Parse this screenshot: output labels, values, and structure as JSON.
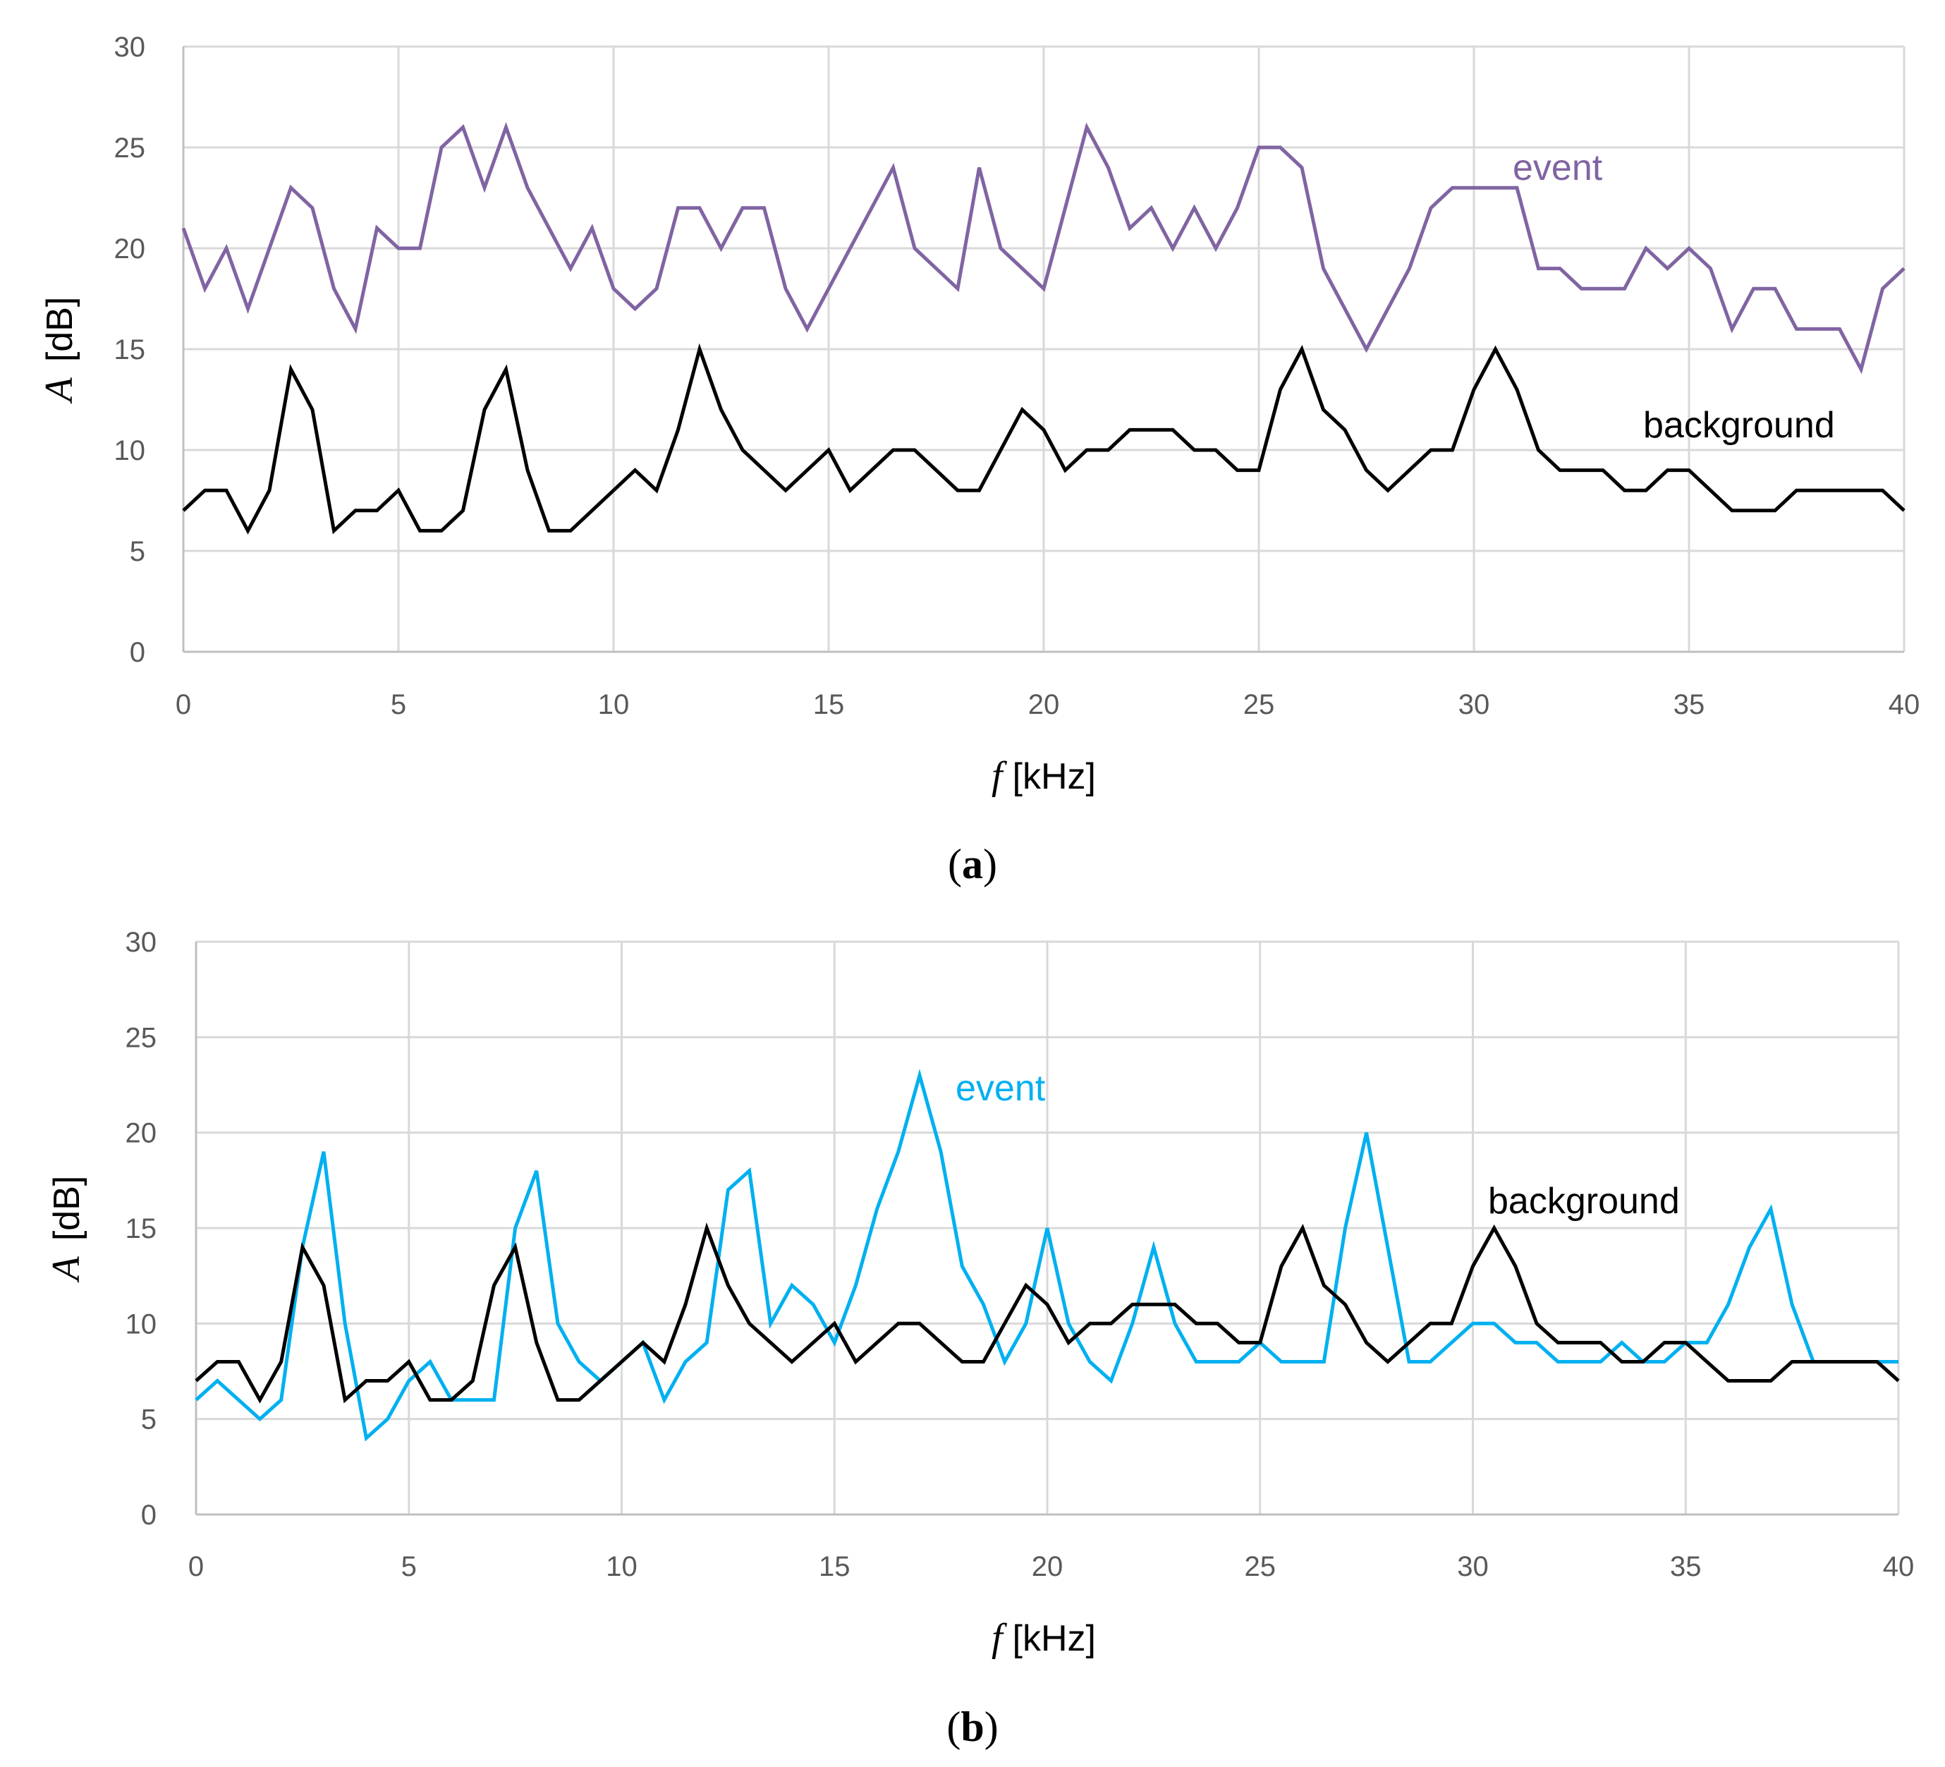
{
  "chart_data": [
    {
      "type": "line",
      "panel_label": "a",
      "xlabel_var": "f",
      "xlabel_unit": "[kHz]",
      "ylabel_var": "A",
      "ylabel_unit": "[dB]",
      "xlim": [
        0,
        40
      ],
      "ylim": [
        0,
        30
      ],
      "xticks": [
        0,
        5,
        10,
        15,
        20,
        25,
        30,
        35,
        40
      ],
      "yticks": [
        0,
        5,
        10,
        15,
        20,
        25,
        30
      ],
      "grid": true,
      "x": [
        0,
        0.5,
        1,
        1.5,
        2,
        2.5,
        3,
        3.5,
        4,
        4.5,
        5,
        5.5,
        6,
        6.5,
        7,
        7.5,
        8,
        8.5,
        9,
        9.5,
        10,
        10.5,
        11,
        11.5,
        12,
        12.5,
        13,
        13.5,
        14,
        14.5,
        15,
        15.5,
        16,
        16.5,
        17,
        17.5,
        18,
        18.5,
        19,
        19.5,
        20,
        20.5,
        21,
        21.5,
        22,
        22.5,
        23,
        23.5,
        24,
        24.5,
        25,
        25.5,
        26,
        26.5,
        27,
        27.5,
        28,
        28.5,
        29,
        29.5,
        30,
        30.5,
        31,
        31.5,
        32,
        32.5,
        33,
        33.5,
        34,
        34.5,
        35,
        35.5,
        36,
        36.5,
        37,
        37.5,
        38,
        38.5,
        39,
        39.5,
        40
      ],
      "series": [
        {
          "name": "event",
          "color": "#8064a2",
          "values": [
            21,
            18,
            20,
            17,
            20,
            23,
            22,
            18,
            16,
            21,
            20,
            20,
            25,
            26,
            23,
            26,
            23,
            21,
            19,
            21,
            18,
            17,
            18,
            22,
            22,
            20,
            22,
            22,
            18,
            16,
            18,
            20,
            22,
            24,
            20,
            19,
            18,
            24,
            20,
            19,
            18,
            22,
            26,
            24,
            21,
            22,
            20,
            22,
            20,
            22,
            25,
            25,
            24,
            19,
            17,
            15,
            17,
            19,
            22,
            23,
            23,
            23,
            23,
            19,
            19,
            18,
            18,
            18,
            20,
            19,
            20,
            19,
            16,
            18,
            18,
            16,
            16,
            16,
            14,
            18,
            19
          ]
        },
        {
          "name": "background",
          "color": "#000000",
          "values": [
            7,
            8,
            8,
            6,
            8,
            14,
            12,
            6,
            7,
            7,
            8,
            6,
            6,
            7,
            12,
            14,
            9,
            6,
            6,
            7,
            8,
            9,
            8,
            11,
            15,
            12,
            10,
            9,
            8,
            9,
            10,
            8,
            9,
            10,
            10,
            9,
            8,
            8,
            10,
            12,
            11,
            9,
            10,
            10,
            11,
            11,
            11,
            10,
            10,
            9,
            9,
            13,
            15,
            12,
            11,
            9,
            8,
            9,
            10,
            10,
            13,
            15,
            13,
            10,
            9,
            9,
            9,
            8,
            8,
            9,
            9,
            8,
            7,
            7,
            7,
            8,
            8,
            8,
            8,
            8,
            7
          ]
        }
      ]
    },
    {
      "type": "line",
      "panel_label": "b",
      "xlabel_var": "f",
      "xlabel_unit": "[kHz]",
      "ylabel_var": "A",
      "ylabel_unit": "[dB]",
      "xlim": [
        0,
        40
      ],
      "ylim": [
        0,
        30
      ],
      "xticks": [
        0,
        5,
        10,
        15,
        20,
        25,
        30,
        35,
        40
      ],
      "yticks": [
        0,
        5,
        10,
        15,
        20,
        25,
        30
      ],
      "grid": true,
      "x": [
        0,
        0.5,
        1,
        1.5,
        2,
        2.5,
        3,
        3.5,
        4,
        4.5,
        5,
        5.5,
        6,
        6.5,
        7,
        7.5,
        8,
        8.5,
        9,
        9.5,
        10,
        10.5,
        11,
        11.5,
        12,
        12.5,
        13,
        13.5,
        14,
        14.5,
        15,
        15.5,
        16,
        16.5,
        17,
        17.5,
        18,
        18.5,
        19,
        19.5,
        20,
        20.5,
        21,
        21.5,
        22,
        22.5,
        23,
        23.5,
        24,
        24.5,
        25,
        25.5,
        26,
        26.5,
        27,
        27.5,
        28,
        28.5,
        29,
        29.5,
        30,
        30.5,
        31,
        31.5,
        32,
        32.5,
        33,
        33.5,
        34,
        34.5,
        35,
        35.5,
        36,
        36.5,
        37,
        37.5,
        38,
        38.5,
        39,
        39.5,
        40
      ],
      "series": [
        {
          "name": "event",
          "color": "#00b0f0",
          "values": [
            6,
            7,
            6,
            5,
            6,
            14,
            19,
            10,
            4,
            5,
            7,
            8,
            6,
            6,
            6,
            15,
            18,
            10,
            8,
            7,
            8,
            9,
            6,
            8,
            9,
            17,
            18,
            10,
            12,
            11,
            9,
            12,
            16,
            19,
            23,
            19,
            13,
            11,
            8,
            10,
            15,
            10,
            8,
            7,
            10,
            14,
            10,
            8,
            8,
            8,
            9,
            8,
            8,
            8,
            15,
            20,
            14,
            8,
            8,
            9,
            10,
            10,
            9,
            9,
            8,
            8,
            8,
            9,
            8,
            8,
            9,
            9,
            11,
            14,
            16,
            11,
            8,
            8,
            8,
            8,
            8
          ]
        },
        {
          "name": "background",
          "color": "#000000",
          "values": [
            7,
            8,
            8,
            6,
            8,
            14,
            12,
            6,
            7,
            7,
            8,
            6,
            6,
            7,
            12,
            14,
            9,
            6,
            6,
            7,
            8,
            9,
            8,
            11,
            15,
            12,
            10,
            9,
            8,
            9,
            10,
            8,
            9,
            10,
            10,
            9,
            8,
            8,
            10,
            12,
            11,
            9,
            10,
            10,
            11,
            11,
            11,
            10,
            10,
            9,
            9,
            13,
            15,
            12,
            11,
            9,
            8,
            9,
            10,
            10,
            13,
            15,
            13,
            10,
            9,
            9,
            9,
            8,
            8,
            9,
            9,
            8,
            7,
            7,
            7,
            8,
            8,
            8,
            8,
            8,
            7
          ]
        }
      ]
    }
  ]
}
